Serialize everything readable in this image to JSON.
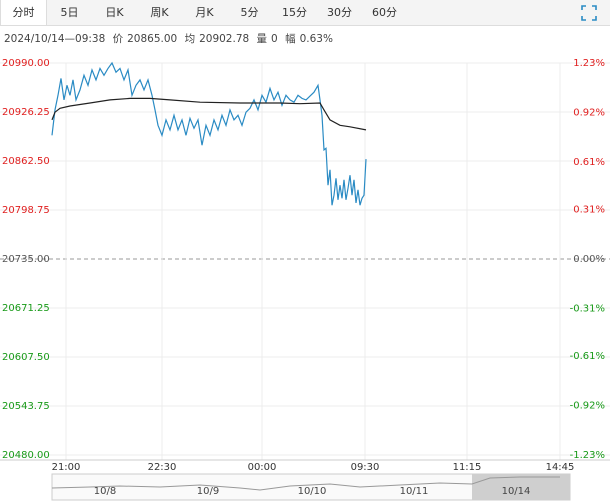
{
  "tabs": [
    "分时",
    "5日",
    "日K",
    "周K",
    "月K",
    "5分",
    "15分",
    "30分",
    "60分"
  ],
  "selected_tab": 0,
  "info": {
    "time": "2024/10/14—09:38",
    "price_label": "价",
    "price": "20865.00",
    "avg_label": "均",
    "avg": "20902.78",
    "vol_label": "量",
    "vol": "0",
    "amp_label": "幅",
    "amp": "0.63%"
  },
  "chart_data": {
    "type": "line",
    "xlim": [
      0,
      558
    ],
    "xticks": [
      {
        "value": 14,
        "label": "21:00"
      },
      {
        "value": 110,
        "label": "22:30"
      },
      {
        "value": 210,
        "label": "00:00"
      },
      {
        "value": 313,
        "label": "09:30"
      },
      {
        "value": 415,
        "label": "11:15"
      },
      {
        "value": 508,
        "label": "14:45"
      }
    ],
    "ylim": [
      20480,
      20990
    ],
    "yticks": [
      {
        "value": 20990,
        "label": "20990.00"
      },
      {
        "value": 20926.25,
        "label": "20926.25"
      },
      {
        "value": 20862.5,
        "label": "20862.50"
      },
      {
        "value": 20798.75,
        "label": "20798.75"
      },
      {
        "value": 20735,
        "label": "20735.00"
      },
      {
        "value": 20671.25,
        "label": "20671.25"
      },
      {
        "value": 20607.5,
        "label": "20607.50"
      },
      {
        "value": 20543.75,
        "label": "20543.75"
      },
      {
        "value": 20480,
        "label": "20480.00"
      }
    ],
    "y2lim": [
      -1.23,
      1.23
    ],
    "y2ticks": [
      {
        "value": 1.23,
        "label": "1.23%"
      },
      {
        "value": 0.92,
        "label": "0.92%"
      },
      {
        "value": 0.61,
        "label": "0.61%"
      },
      {
        "value": 0.31,
        "label": "0.31%"
      },
      {
        "value": 0,
        "label": "0.00%"
      },
      {
        "value": -0.31,
        "label": "-0.31%"
      },
      {
        "value": -0.61,
        "label": "-0.61%"
      },
      {
        "value": -0.92,
        "label": "-0.92%"
      },
      {
        "value": -1.23,
        "label": "-1.23%"
      }
    ],
    "grid": true,
    "up_color": "#e02020",
    "down_color": "#189a18",
    "flat_color": "#555555",
    "series": [
      {
        "color": "#2a8bc4",
        "x": [
          0,
          3,
          6,
          9,
          12,
          15,
          18,
          21,
          24,
          28,
          32,
          36,
          40,
          44,
          48,
          52,
          56,
          60,
          64,
          68,
          72,
          76,
          80,
          84,
          88,
          92,
          96,
          100,
          103,
          106,
          110,
          114,
          118,
          122,
          126,
          130,
          134,
          138,
          142,
          146,
          150,
          154,
          158,
          162,
          166,
          170,
          174,
          178,
          182,
          186,
          190,
          194,
          198,
          202,
          206,
          210,
          214,
          218,
          222,
          226,
          230,
          234,
          238,
          242,
          246,
          250,
          254,
          258,
          262,
          266,
          268,
          270,
          272,
          274,
          276,
          278,
          280,
          282,
          284,
          286,
          288,
          290,
          292,
          294,
          296,
          298,
          300,
          302,
          304,
          306,
          308,
          310,
          312,
          314
        ],
        "values": [
          20896,
          20929,
          20948,
          20970,
          20942,
          20961,
          20948,
          20968,
          20942,
          20955,
          20974,
          20961,
          20981,
          20968,
          20983,
          20974,
          20983,
          20990,
          20978,
          20983,
          20968,
          20981,
          20948,
          20961,
          20968,
          20955,
          20968,
          20948,
          20929,
          20909,
          20896,
          20916,
          20903,
          20922,
          20903,
          20916,
          20896,
          20918,
          20905,
          20916,
          20883,
          20909,
          20896,
          20916,
          20903,
          20922,
          20909,
          20929,
          20916,
          20922,
          20909,
          20926,
          20931,
          20942,
          20929,
          20948,
          20939,
          20957,
          20942,
          20952,
          20935,
          20948,
          20942,
          20939,
          20948,
          20944,
          20942,
          20947,
          20952,
          20961,
          20942,
          20922,
          20877,
          20879,
          20831,
          20851,
          20805,
          20818,
          20840,
          20812,
          20831,
          20814,
          20838,
          20812,
          20827,
          20844,
          20818,
          20838,
          20808,
          20825,
          20805,
          20814,
          20818,
          20865
        ]
      },
      {
        "color": "#222222",
        "x": [
          0,
          3,
          8,
          18,
          38,
          58,
          78,
          98,
          118,
          148,
          188,
          228,
          248,
          268,
          272,
          278,
          288,
          298,
          314
        ],
        "values": [
          20916,
          20926,
          20931,
          20934,
          20938,
          20942,
          20944,
          20944,
          20942,
          20939,
          20938,
          20938,
          20937,
          20938,
          20929,
          20916,
          20909,
          20907,
          20903
        ]
      }
    ]
  },
  "navigator": {
    "labels": [
      "10/8",
      "10/9",
      "10/10",
      "10/11",
      "10/14"
    ]
  }
}
